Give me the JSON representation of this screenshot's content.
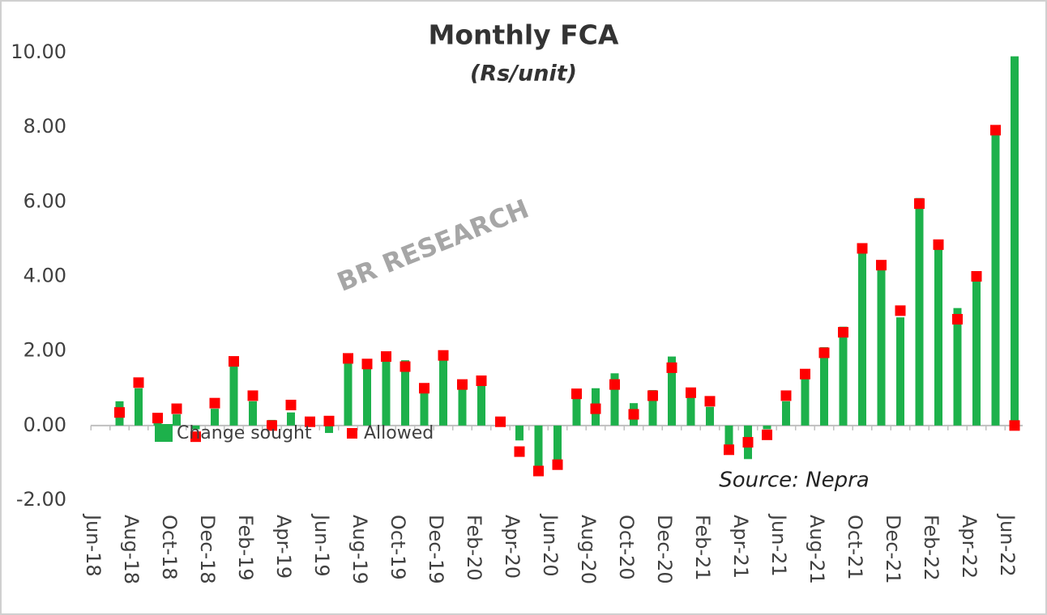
{
  "chart_data": {
    "type": "bar",
    "title": "Monthly FCA",
    "subtitle": "(Rs/unit)",
    "watermark": "BR RESEARCH",
    "source": "Source: Nepra",
    "categories": [
      "Jun-18",
      null,
      "Aug-18",
      null,
      "Oct-18",
      null,
      "Dec-18",
      null,
      "Feb-19",
      null,
      "Apr-19",
      null,
      "Jun-19",
      null,
      "Aug-19",
      null,
      "Oct-19",
      null,
      "Dec-19",
      null,
      "Feb-20",
      null,
      "Apr-20",
      null,
      "Jun-20",
      null,
      "Aug-20",
      null,
      "Oct-20",
      null,
      "Dec-20",
      null,
      "Feb-21",
      null,
      "Apr-21",
      null,
      "Jun-21",
      null,
      "Aug-21",
      null,
      "Oct-21",
      null,
      "Dec-21",
      null,
      "Feb-22",
      null,
      "Apr-22",
      null,
      "Jun-22"
    ],
    "series": [
      {
        "name": "Change sought",
        "color": "#1db14b",
        "values": [
          null,
          0.65,
          1.0,
          0.2,
          0.3,
          -0.1,
          0.45,
          1.8,
          0.65,
          0.15,
          0.35,
          0.1,
          -0.2,
          1.8,
          1.6,
          1.8,
          1.75,
          1.0,
          1.85,
          1.0,
          1.1,
          0.05,
          -0.4,
          -1.2,
          -1.0,
          0.75,
          1.0,
          1.4,
          0.6,
          0.95,
          1.85,
          0.8,
          0.5,
          -0.6,
          -0.9,
          -0.1,
          0.65,
          1.3,
          2.1,
          2.65,
          4.65,
          4.2,
          2.9,
          6.1,
          4.75,
          3.15,
          3.95,
          7.85,
          9.9
        ]
      },
      {
        "name": "Allowed",
        "color": "#ff0000",
        "values": [
          null,
          0.35,
          1.15,
          0.2,
          0.45,
          -0.3,
          0.6,
          1.72,
          0.8,
          0.0,
          0.55,
          0.1,
          0.12,
          1.8,
          1.65,
          1.85,
          1.58,
          1.0,
          1.88,
          1.1,
          1.2,
          0.1,
          -0.7,
          -1.22,
          -1.05,
          0.85,
          0.45,
          1.1,
          0.3,
          0.8,
          1.55,
          0.88,
          0.65,
          -0.65,
          -0.45,
          -0.25,
          0.8,
          1.38,
          1.95,
          2.5,
          4.75,
          4.3,
          3.08,
          5.95,
          4.85,
          2.85,
          4.0,
          7.92,
          0.0
        ]
      }
    ],
    "ylim": [
      -2,
      10
    ],
    "yticks": [
      {
        "value": -2,
        "label": "-2.00"
      },
      {
        "value": 0,
        "label": "0.00"
      },
      {
        "value": 2,
        "label": "2.00"
      },
      {
        "value": 4,
        "label": "4.00"
      },
      {
        "value": 6,
        "label": "6.00"
      },
      {
        "value": 8,
        "label": "8.00"
      },
      {
        "value": 10,
        "label": "10.00"
      }
    ],
    "grid": false
  }
}
